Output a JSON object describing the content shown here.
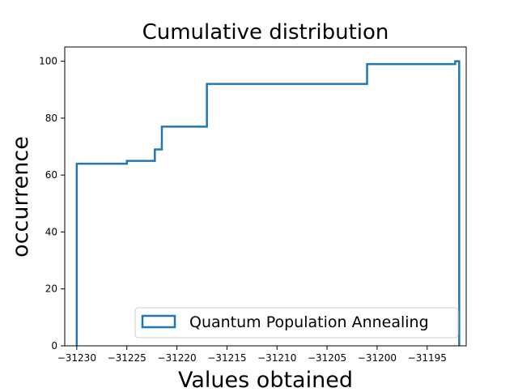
{
  "chart_data": {
    "type": "line",
    "step": true,
    "title": "Cumulative distribution",
    "xlabel": "Values obtained",
    "ylabel": "occurrence",
    "xlim": [
      -31231.2,
      -31191.1
    ],
    "ylim": [
      0,
      105
    ],
    "xticks": [
      -31230,
      -31225,
      -31220,
      -31215,
      -31210,
      -31205,
      -31200,
      -31195
    ],
    "xtick_labels": [
      "−31230",
      "−31225",
      "−31220",
      "−31215",
      "−31210",
      "−31205",
      "−31200",
      "−31195"
    ],
    "yticks": [
      0,
      20,
      40,
      60,
      80,
      100
    ],
    "ytick_labels": [
      "0",
      "20",
      "40",
      "60",
      "80",
      "100"
    ],
    "grid": false,
    "legend_position": "lower-right",
    "series": [
      {
        "name": "Quantum Population Annealing",
        "color": "#1f77b4",
        "x": [
          -31230,
          -31225,
          -31222.2,
          -31221.5,
          -31217,
          -31201,
          -31192.2,
          -31191.8
        ],
        "y": [
          64,
          65,
          69,
          77,
          92,
          99,
          100,
          0
        ]
      }
    ]
  }
}
